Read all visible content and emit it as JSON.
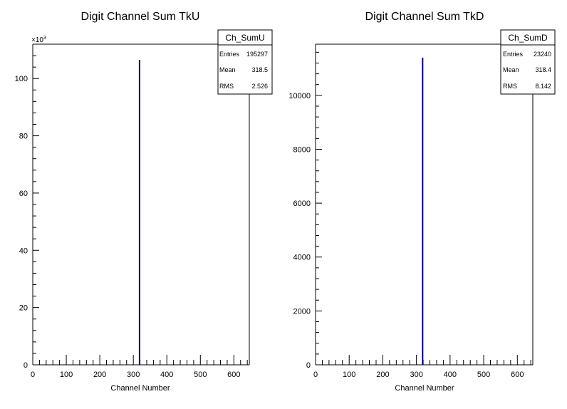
{
  "chart_data": [
    {
      "type": "bar",
      "title": "Digit Channel Sum TkU",
      "xlabel": "Channel Number",
      "ylabel": "",
      "xlim": [
        0,
        646
      ],
      "ylim": [
        0,
        112000
      ],
      "y_multiplier_label": "×10",
      "y_multiplier_exp": "3",
      "x_ticks": [
        0,
        100,
        200,
        300,
        400,
        500,
        600
      ],
      "x_tick_labels": [
        "0",
        "100",
        "200",
        "300",
        "400",
        "500",
        "600"
      ],
      "y_ticks": [
        0,
        20000,
        40000,
        60000,
        80000,
        100000
      ],
      "y_tick_labels": [
        "0",
        "20",
        "40",
        "60",
        "80",
        "100"
      ],
      "series": [
        {
          "x": [
            318.5
          ],
          "values": [
            106500
          ]
        }
      ],
      "stats": {
        "name": "Ch_SumU",
        "rows": [
          {
            "label": "Entries",
            "value": "195297"
          },
          {
            "label": "Mean",
            "value": "318.5"
          },
          {
            "label": "RMS",
            "value": "2.526"
          }
        ]
      },
      "grid": false,
      "line_color": "#000080"
    },
    {
      "type": "bar",
      "title": "Digit Channel Sum TkD",
      "xlabel": "Channel Number",
      "ylabel": "",
      "xlim": [
        0,
        646
      ],
      "ylim": [
        0,
        11900
      ],
      "x_ticks": [
        0,
        100,
        200,
        300,
        400,
        500,
        600
      ],
      "x_tick_labels": [
        "0",
        "100",
        "200",
        "300",
        "400",
        "500",
        "600"
      ],
      "y_ticks": [
        0,
        2000,
        4000,
        6000,
        8000,
        10000
      ],
      "y_tick_labels": [
        "0",
        "2000",
        "4000",
        "6000",
        "8000",
        "10000"
      ],
      "series": [
        {
          "x": [
            318.4
          ],
          "values": [
            11400
          ]
        }
      ],
      "stats": {
        "name": "Ch_SumD",
        "rows": [
          {
            "label": "Entries",
            "value": "23240"
          },
          {
            "label": "Mean",
            "value": "318.4"
          },
          {
            "label": "RMS",
            "value": "8.142"
          }
        ]
      },
      "grid": false,
      "line_color": "#000080"
    }
  ]
}
